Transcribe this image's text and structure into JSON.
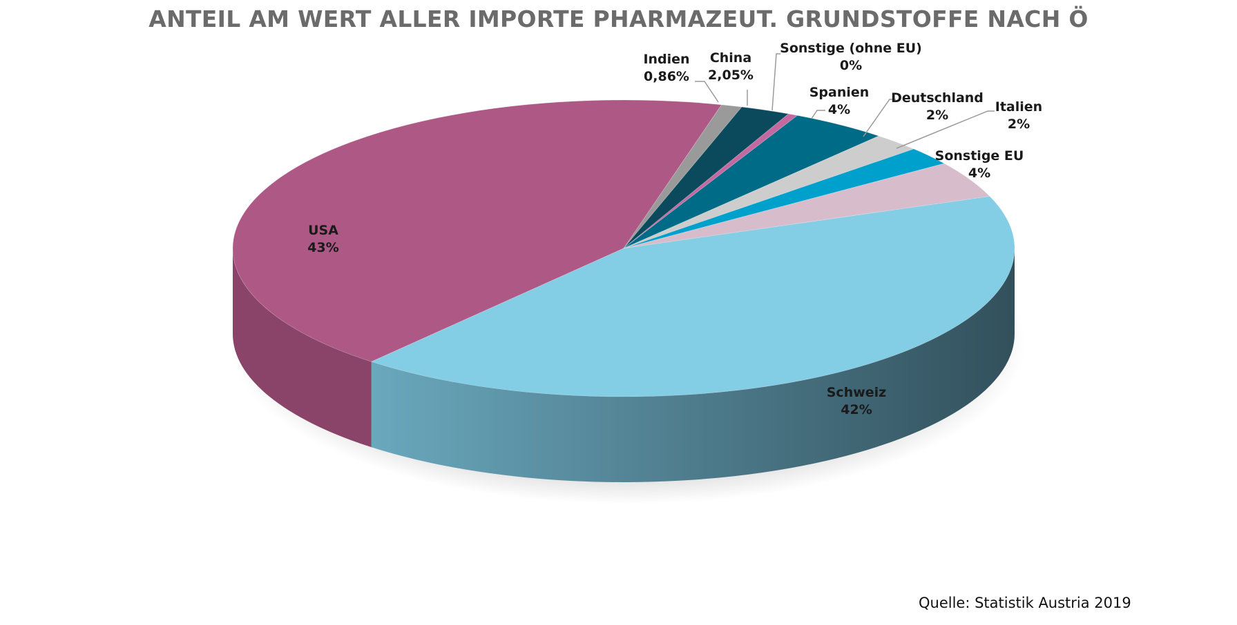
{
  "chart_data": {
    "type": "pie",
    "title": "ANTEIL AM WERT ALLER IMPORTE PHARMAZEUT. GRUNDSTOFFE NACH Ö",
    "slices": [
      {
        "name": "USA",
        "value": 43.0,
        "label": "43%",
        "color": "#ad5885"
      },
      {
        "name": "Indien",
        "value": 0.86,
        "label": "0,86%",
        "color": "#9a9a9a"
      },
      {
        "name": "China",
        "value": 2.05,
        "label": "2,05%",
        "color": "#0b4a5c"
      },
      {
        "name": "Sonstige (ohne EU)",
        "value": 0.4,
        "label": "0%",
        "color": "#c468a2"
      },
      {
        "name": "Spanien",
        "value": 4.0,
        "label": "4%",
        "color": "#006b86"
      },
      {
        "name": "Deutschland",
        "value": 2.0,
        "label": "2%",
        "color": "#cdcdcd"
      },
      {
        "name": "Italien",
        "value": 2.0,
        "label": "2%",
        "color": "#00a0cd"
      },
      {
        "name": "Sonstige EU",
        "value": 4.0,
        "label": "4%",
        "color": "#d7bccb"
      },
      {
        "name": "Schweiz",
        "value": 42.0,
        "label": "42%",
        "color": "#83cde5"
      }
    ],
    "legend": "none",
    "source": "Quelle: Statistik Austria 2019"
  },
  "colors": {
    "title": "#6b6b6b",
    "leader_line": "#9a9a9a",
    "usa_side": "#8b4469",
    "schweiz_side_light": "#6aa8bd",
    "schweiz_side_dark": "#32505c"
  }
}
